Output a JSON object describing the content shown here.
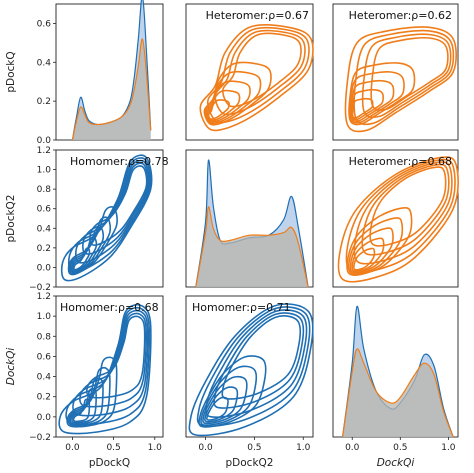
{
  "chart_data": {
    "type": "pairplot",
    "variables": [
      "pDockQ",
      "pDockQ2",
      "DockQi"
    ],
    "axis_labels": {
      "x": [
        "pDockQ",
        "pDockQ2",
        "DockQi"
      ],
      "y": [
        "pDockQ",
        "pDockQ2",
        "DockQi"
      ]
    },
    "x_ticks": {
      "col0": [
        "0.0",
        "0.5",
        "1.0"
      ],
      "col1": [
        "0.0",
        "0.5",
        "1.0"
      ],
      "col2": [
        "0.0",
        "0.5",
        "1.0"
      ]
    },
    "y_ticks": {
      "row0": [
        "0.0",
        "0.2",
        "0.4",
        "0.6"
      ],
      "row1": [
        "−0.2",
        "0.0",
        "0.2",
        "0.4",
        "0.6",
        "0.8",
        "1.0",
        "1.2"
      ],
      "row2": [
        "−0.2",
        "0.0",
        "0.2",
        "0.4",
        "0.6",
        "0.8",
        "1.0",
        "1.2"
      ]
    },
    "groups": [
      {
        "name": "Homomer",
        "color": "#1f6fb4",
        "fill": "#a9c6e6"
      },
      {
        "name": "Heteromer",
        "color": "#f07d1a",
        "fill": "#f5c79c"
      }
    ],
    "overlap_fill": "#b9b6ae",
    "panel_labels": {
      "r0c1": "Heteromer:ρ=0.67",
      "r0c2": "Heteromer:ρ=0.62",
      "r1c0": "Homomer:ρ=0.78",
      "r1c2": "Heteromer:ρ=0.68",
      "r2c0": "Homomer:ρ=0.68",
      "r2c1": "Homomer:ρ=0.71"
    },
    "correlations": [
      {
        "pair": [
          "pDockQ",
          "pDockQ2"
        ],
        "group": "Heteromer",
        "rho": 0.67
      },
      {
        "pair": [
          "pDockQ",
          "DockQi"
        ],
        "group": "Heteromer",
        "rho": 0.62
      },
      {
        "pair": [
          "pDockQ2",
          "DockQi"
        ],
        "group": "Heteromer",
        "rho": 0.68
      },
      {
        "pair": [
          "pDockQ2",
          "pDockQ"
        ],
        "group": "Homomer",
        "rho": 0.78
      },
      {
        "pair": [
          "DockQi",
          "pDockQ"
        ],
        "group": "Homomer",
        "rho": 0.68
      },
      {
        "pair": [
          "DockQi",
          "pDockQ2"
        ],
        "group": "Homomer",
        "rho": 0.71
      }
    ],
    "diagonal_density": {
      "pDockQ": {
        "x": [
          0.0,
          0.05,
          0.1,
          0.15,
          0.2,
          0.3,
          0.45,
          0.6,
          0.7,
          0.75,
          0.8,
          0.85,
          0.9,
          0.95
        ],
        "Homomer": [
          0.0,
          0.12,
          0.22,
          0.15,
          0.1,
          0.08,
          0.09,
          0.12,
          0.2,
          0.32,
          0.52,
          0.74,
          0.45,
          0.05
        ],
        "Heteromer": [
          0.0,
          0.1,
          0.17,
          0.13,
          0.09,
          0.08,
          0.09,
          0.12,
          0.18,
          0.26,
          0.38,
          0.52,
          0.34,
          0.05
        ]
      },
      "pDockQ2": {
        "x": [
          -0.1,
          0.0,
          0.03,
          0.08,
          0.15,
          0.25,
          0.45,
          0.65,
          0.8,
          0.88,
          0.95,
          1.05
        ],
        "Homomer": [
          0.0,
          0.5,
          0.98,
          0.62,
          0.36,
          0.34,
          0.38,
          0.4,
          0.52,
          0.7,
          0.46,
          0.0
        ],
        "Heteromer": [
          0.0,
          0.42,
          0.62,
          0.45,
          0.36,
          0.36,
          0.4,
          0.4,
          0.42,
          0.46,
          0.34,
          0.0
        ]
      },
      "DockQi": {
        "x": [
          -0.1,
          0.0,
          0.05,
          0.12,
          0.25,
          0.4,
          0.5,
          0.65,
          0.75,
          0.85,
          0.95,
          1.05
        ],
        "Homomer": [
          0.0,
          0.52,
          0.92,
          0.62,
          0.32,
          0.2,
          0.24,
          0.4,
          0.58,
          0.5,
          0.2,
          0.0
        ],
        "Heteromer": [
          0.0,
          0.46,
          0.62,
          0.52,
          0.32,
          0.24,
          0.28,
          0.44,
          0.52,
          0.44,
          0.18,
          0.0
        ]
      }
    },
    "grid": false,
    "legend": "none"
  }
}
